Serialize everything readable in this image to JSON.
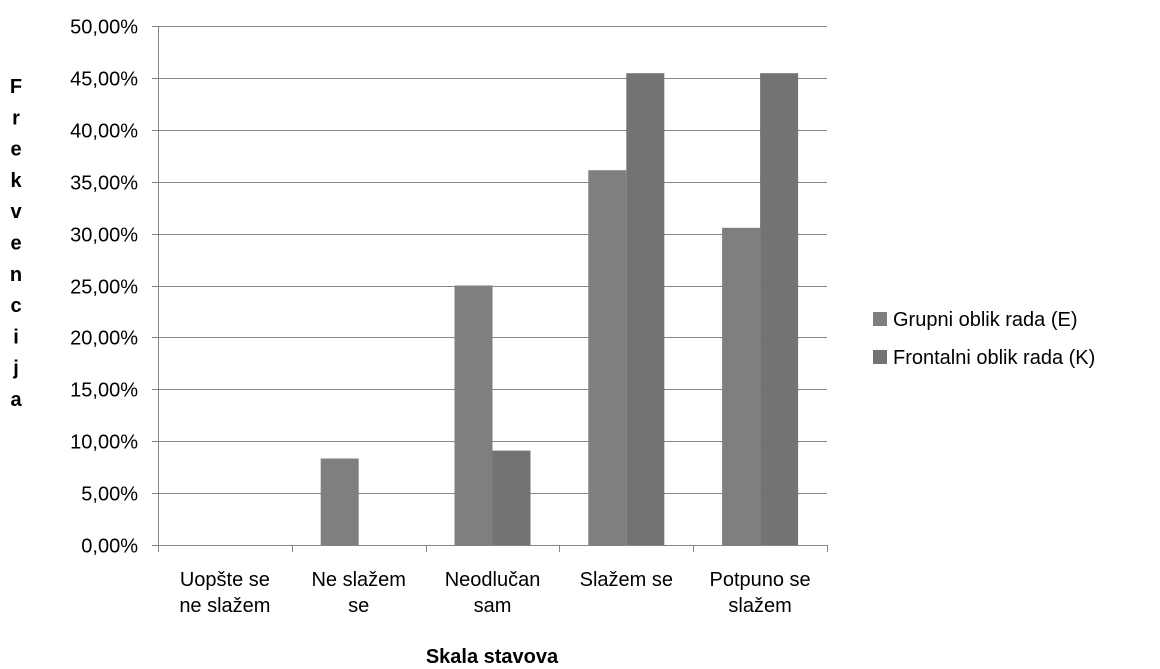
{
  "chart_data": {
    "type": "bar",
    "title": "",
    "xlabel": "Skala stavova",
    "ylabel": "Frekvencija",
    "ylim": [
      0,
      0.5
    ],
    "ytick_step": 0.05,
    "ytick_labels": [
      "0,00%",
      "5,00%",
      "10,00%",
      "15,00%",
      "20,00%",
      "25,00%",
      "30,00%",
      "35,00%",
      "40,00%",
      "45,00%",
      "50,00%"
    ],
    "grid": true,
    "legend_position": "right",
    "categories": [
      [
        "Uopšte se",
        "ne slažem"
      ],
      [
        "Ne slažem",
        "se"
      ],
      [
        "Neodlučan",
        "sam"
      ],
      [
        "Slažem se"
      ],
      [
        "Potpuno se",
        "slažem"
      ]
    ],
    "series": [
      {
        "name": "Grupni oblik rada (E)",
        "color": "#7f7f7f",
        "values": [
          0,
          0.0833,
          0.25,
          0.3611,
          0.3056
        ]
      },
      {
        "name": "Frontalni oblik rada (K)",
        "color": "#737373",
        "values": [
          0,
          0,
          0.0909,
          0.4545,
          0.4545
        ]
      }
    ]
  }
}
